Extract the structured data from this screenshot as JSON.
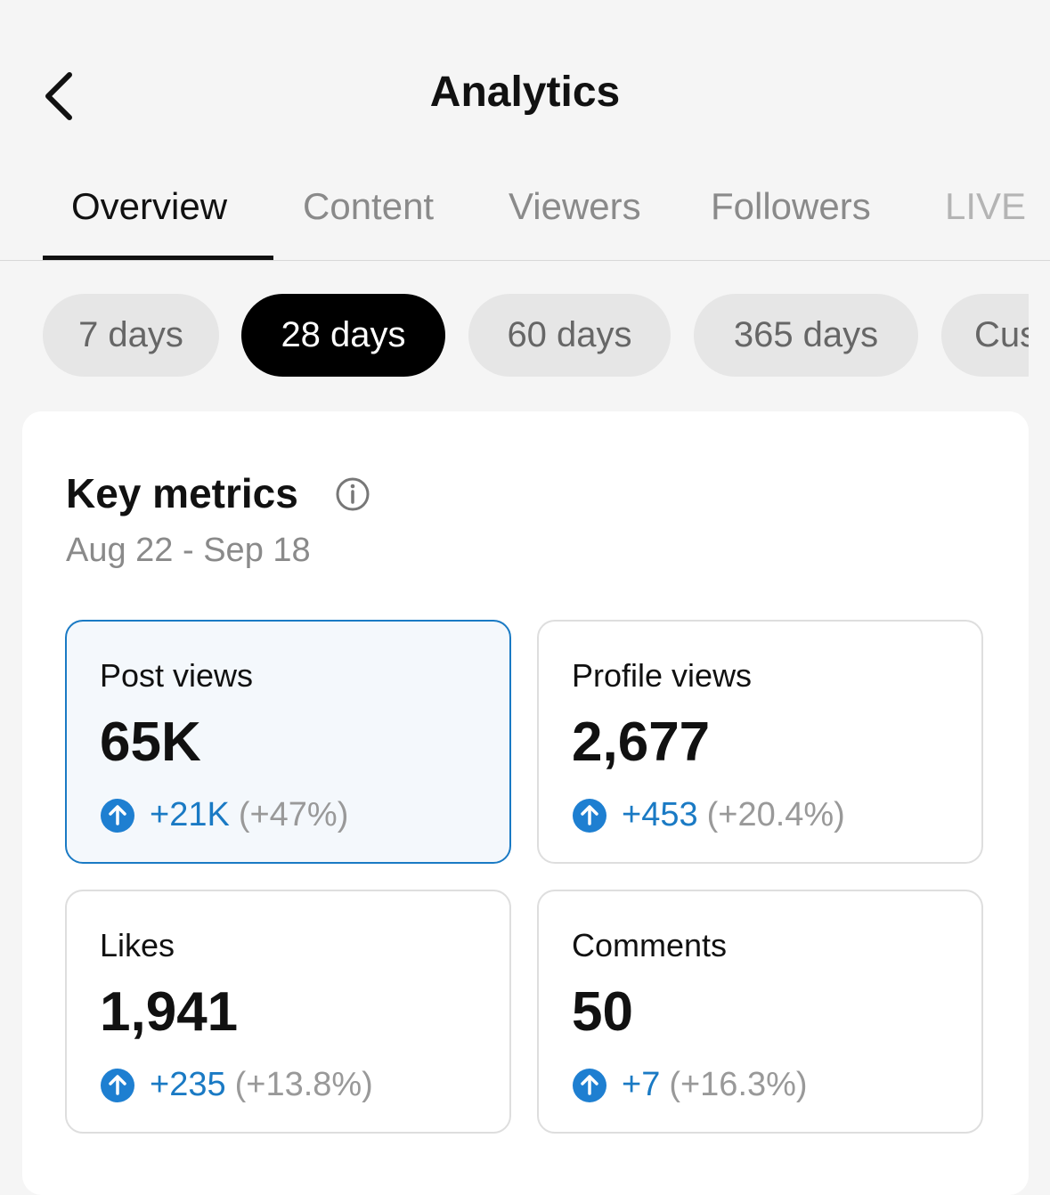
{
  "header": {
    "title": "Analytics"
  },
  "tabs": [
    "Overview",
    "Content",
    "Viewers",
    "Followers",
    "LIVE"
  ],
  "periods": [
    "7 days",
    "28 days",
    "60 days",
    "365 days",
    "Cus"
  ],
  "key_metrics": {
    "title": "Key metrics",
    "date_range": "Aug 22 - Sep 18",
    "metrics": [
      {
        "label": "Post views",
        "value": "65K",
        "change": "+21K",
        "change_pct": "(+47%)"
      },
      {
        "label": "Profile views",
        "value": "2,677",
        "change": "+453",
        "change_pct": "(+20.4%)"
      },
      {
        "label": "Likes",
        "value": "1,941",
        "change": "+235",
        "change_pct": "(+13.8%)"
      },
      {
        "label": "Comments",
        "value": "50",
        "change": "+7",
        "change_pct": "(+16.3%)"
      }
    ]
  }
}
